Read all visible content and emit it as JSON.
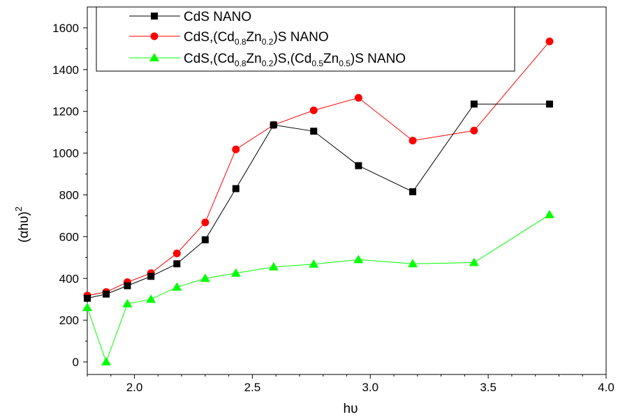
{
  "chart_data": {
    "type": "line",
    "xlabel": "hυ",
    "ylabel": "(αhυ)",
    "ylabel_superscript": "2",
    "xlim": [
      1.8,
      4.0
    ],
    "ylim": [
      -60,
      1700
    ],
    "x_ticks": [
      "2.0",
      "2.5",
      "3.0",
      "3.5",
      "4.0"
    ],
    "y_ticks": [
      "0",
      "200",
      "400",
      "600",
      "800",
      "1000",
      "1200",
      "1400",
      "1600"
    ],
    "grid": false,
    "legend_position": "top",
    "series": [
      {
        "name": "CdS NANO",
        "legend_parts": [
          {
            "t": "CdS NANO",
            "sub": false
          }
        ],
        "color": "#000000",
        "marker": "square",
        "x": [
          1.8,
          1.88,
          1.97,
          2.07,
          2.18,
          2.3,
          2.43,
          2.59,
          2.76,
          2.95,
          3.18,
          3.44,
          3.76
        ],
        "y": [
          305,
          325,
          365,
          410,
          470,
          585,
          830,
          1135,
          1105,
          940,
          815,
          1235,
          1235
        ]
      },
      {
        "name": "CdS,(Cd0.8Zn0.2)S NANO",
        "legend_parts": [
          {
            "t": "CdS,(Cd",
            "sub": false
          },
          {
            "t": "0.8",
            "sub": true
          },
          {
            "t": "Zn",
            "sub": false
          },
          {
            "t": "0.2",
            "sub": true
          },
          {
            "t": ")S NANO",
            "sub": false
          }
        ],
        "color": "#ff0000",
        "marker": "circle",
        "x": [
          1.8,
          1.88,
          1.97,
          2.07,
          2.18,
          2.3,
          2.43,
          2.59,
          2.76,
          2.95,
          3.18,
          3.44,
          3.76
        ],
        "y": [
          318,
          335,
          382,
          425,
          520,
          668,
          1018,
          1135,
          1205,
          1265,
          1060,
          1108,
          1535
        ]
      },
      {
        "name": "CdS,(Cd0.8Zn0.2)S,(Cd0.5Zn0.5)S NANO",
        "legend_parts": [
          {
            "t": "CdS,(Cd",
            "sub": false
          },
          {
            "t": "0.8",
            "sub": true
          },
          {
            "t": "Zn",
            "sub": false
          },
          {
            "t": "0.2",
            "sub": true
          },
          {
            "t": ")S,(Cd",
            "sub": false
          },
          {
            "t": "0.5",
            "sub": true
          },
          {
            "t": "Zn",
            "sub": false
          },
          {
            "t": "0.5",
            "sub": true
          },
          {
            "t": ")S NANO",
            "sub": false
          }
        ],
        "color": "#00ff00",
        "marker": "triangle",
        "x": [
          1.8,
          1.88,
          1.97,
          2.07,
          2.18,
          2.3,
          2.43,
          2.59,
          2.76,
          2.95,
          3.18,
          3.44,
          3.76
        ],
        "y": [
          260,
          0,
          278,
          300,
          358,
          400,
          425,
          455,
          468,
          490,
          470,
          476,
          705
        ]
      }
    ]
  }
}
